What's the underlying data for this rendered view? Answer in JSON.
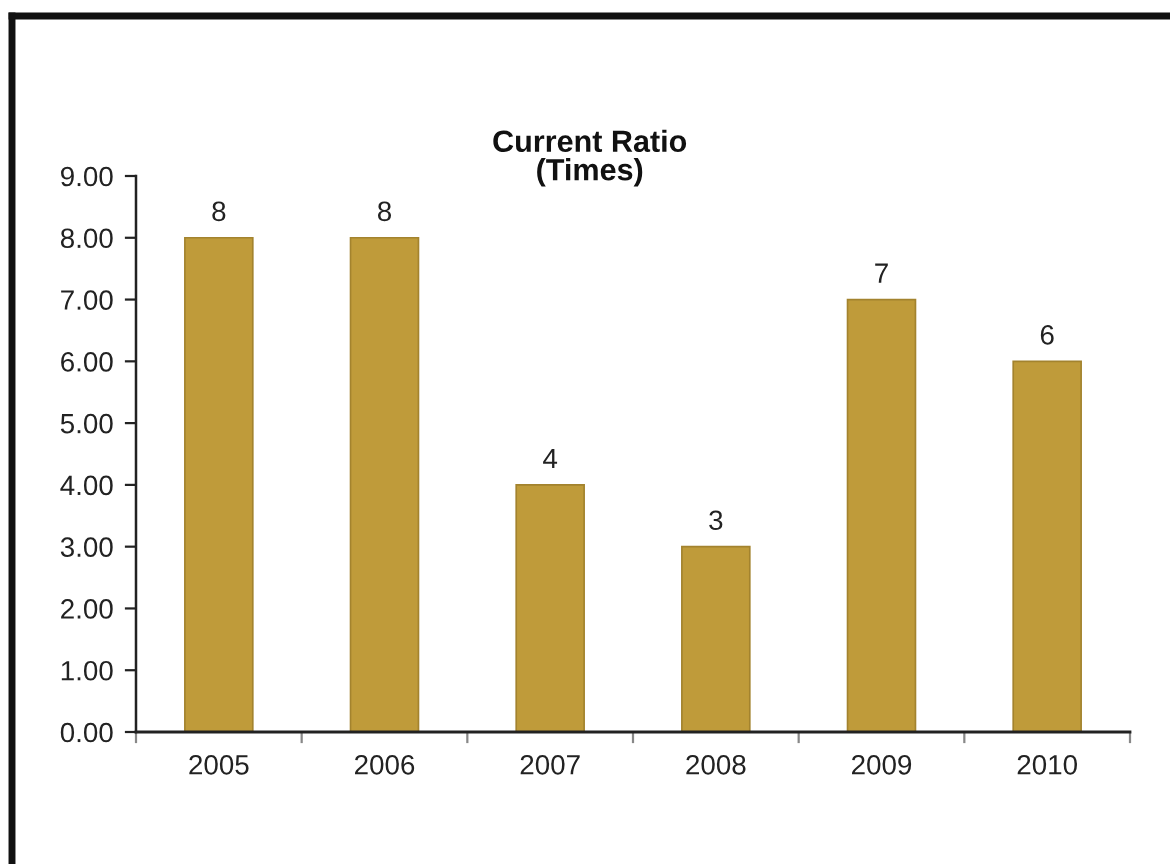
{
  "chart_data": {
    "type": "bar",
    "title": "Current Ratio\n(Times)",
    "categories": [
      "2005",
      "2006",
      "2007",
      "2008",
      "2009",
      "2010"
    ],
    "values": [
      8,
      8,
      4,
      3,
      7,
      6
    ],
    "color": "#bf9b3a",
    "ylim": [
      0,
      9
    ],
    "yticks": [
      {
        "value": 0,
        "label": "0.00"
      },
      {
        "value": 1,
        "label": "1.00"
      },
      {
        "value": 2,
        "label": "2.00"
      },
      {
        "value": 3,
        "label": "3.00"
      },
      {
        "value": 4,
        "label": "4.00"
      },
      {
        "value": 5,
        "label": "5.00"
      },
      {
        "value": 6,
        "label": "6.00"
      },
      {
        "value": 7,
        "label": "7.00"
      },
      {
        "value": 8,
        "label": "8.00"
      },
      {
        "value": 9,
        "label": "9.00"
      }
    ],
    "data_labels": true,
    "grid": false,
    "legend": false
  }
}
